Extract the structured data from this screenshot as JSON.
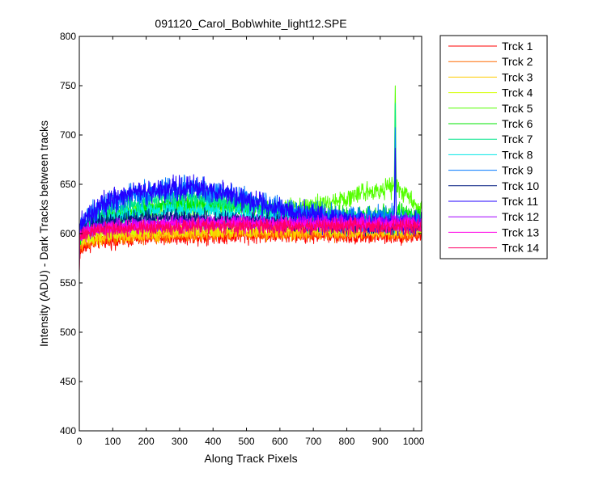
{
  "chart_data": {
    "type": "line",
    "title": "091120_Carol_Bob\\white_light12.SPE",
    "xlabel": "Along Track Pixels",
    "ylabel": "Intensity (ADU) - Dark Tracks between tracks",
    "xlim": [
      0,
      1024
    ],
    "ylim": [
      400,
      800
    ],
    "xticks": [
      0,
      100,
      200,
      300,
      400,
      500,
      600,
      700,
      800,
      900,
      1000
    ],
    "yticks": [
      400,
      450,
      500,
      550,
      600,
      650,
      700,
      750,
      800
    ],
    "grid": false,
    "legend_position": "outside-top-right",
    "x_profile": [
      0,
      20,
      60,
      150,
      250,
      350,
      450,
      550,
      650,
      750,
      850,
      950,
      1024
    ],
    "series": [
      {
        "name": "Trck 1",
        "color": "#ff0000",
        "noise": 7,
        "values": [
          580,
          588,
          592,
          594,
          596,
          597,
          598,
          598,
          598,
          598,
          597,
          597,
          598
        ]
      },
      {
        "name": "Trck 2",
        "color": "#ff6a00",
        "noise": 7,
        "values": [
          585,
          590,
          594,
          596,
          598,
          599,
          600,
          600,
          600,
          600,
          600,
          600,
          601
        ]
      },
      {
        "name": "Trck 3",
        "color": "#ffcc00",
        "noise": 7,
        "values": [
          590,
          593,
          596,
          598,
          600,
          601,
          602,
          602,
          602,
          602,
          602,
          602,
          603
        ]
      },
      {
        "name": "Trck 4",
        "color": "#d4ff00",
        "noise": 7,
        "values": [
          592,
          596,
          600,
          603,
          605,
          606,
          607,
          607,
          607,
          607,
          607,
          607,
          608
        ]
      },
      {
        "name": "Trck 5",
        "color": "#55ff00",
        "noise": 9,
        "values": [
          598,
          604,
          612,
          620,
          626,
          628,
          627,
          626,
          626,
          630,
          642,
          648,
          624
        ]
      },
      {
        "name": "Trck 6",
        "color": "#00e600",
        "noise": 9,
        "values": [
          600,
          606,
          614,
          622,
          628,
          630,
          628,
          624,
          620,
          618,
          618,
          620,
          618
        ]
      },
      {
        "name": "Trck 7",
        "color": "#00e68a",
        "noise": 9,
        "values": [
          602,
          610,
          620,
          630,
          636,
          636,
          632,
          624,
          620,
          616,
          614,
          614,
          612
        ]
      },
      {
        "name": "Trck 8",
        "color": "#00e6e6",
        "noise": 8,
        "values": [
          600,
          606,
          614,
          620,
          624,
          624,
          621,
          616,
          612,
          610,
          609,
          609,
          608
        ]
      },
      {
        "name": "Trck 9",
        "color": "#0077ff",
        "noise": 11,
        "values": [
          604,
          614,
          626,
          638,
          644,
          646,
          640,
          630,
          622,
          618,
          616,
          616,
          614
        ]
      },
      {
        "name": "Trck 10",
        "color": "#001a80",
        "noise": 8,
        "values": [
          598,
          604,
          610,
          614,
          616,
          616,
          614,
          612,
          610,
          609,
          608,
          608,
          608
        ]
      },
      {
        "name": "Trck 11",
        "color": "#2200ff",
        "noise": 11,
        "values": [
          604,
          614,
          628,
          640,
          646,
          646,
          640,
          630,
          620,
          614,
          612,
          612,
          612
        ]
      },
      {
        "name": "Trck 12",
        "color": "#a000ff",
        "noise": 7,
        "values": [
          598,
          602,
          606,
          608,
          610,
          611,
          611,
          611,
          611,
          611,
          611,
          611,
          611
        ]
      },
      {
        "name": "Trck 13",
        "color": "#ff00e6",
        "noise": 7,
        "values": [
          598,
          602,
          605,
          607,
          609,
          610,
          610,
          610,
          610,
          610,
          610,
          610,
          610
        ]
      },
      {
        "name": "Trck 14",
        "color": "#ff0066",
        "noise": 7,
        "values": [
          596,
          600,
          603,
          605,
          606,
          607,
          607,
          607,
          607,
          607,
          607,
          607,
          607
        ]
      }
    ],
    "peak": {
      "x": 945,
      "series_peaks": {
        "Trck 5": 751,
        "Trck 7": 730,
        "Trck 9": 708,
        "Trck 11": 690,
        "Trck 6": 670
      }
    }
  }
}
